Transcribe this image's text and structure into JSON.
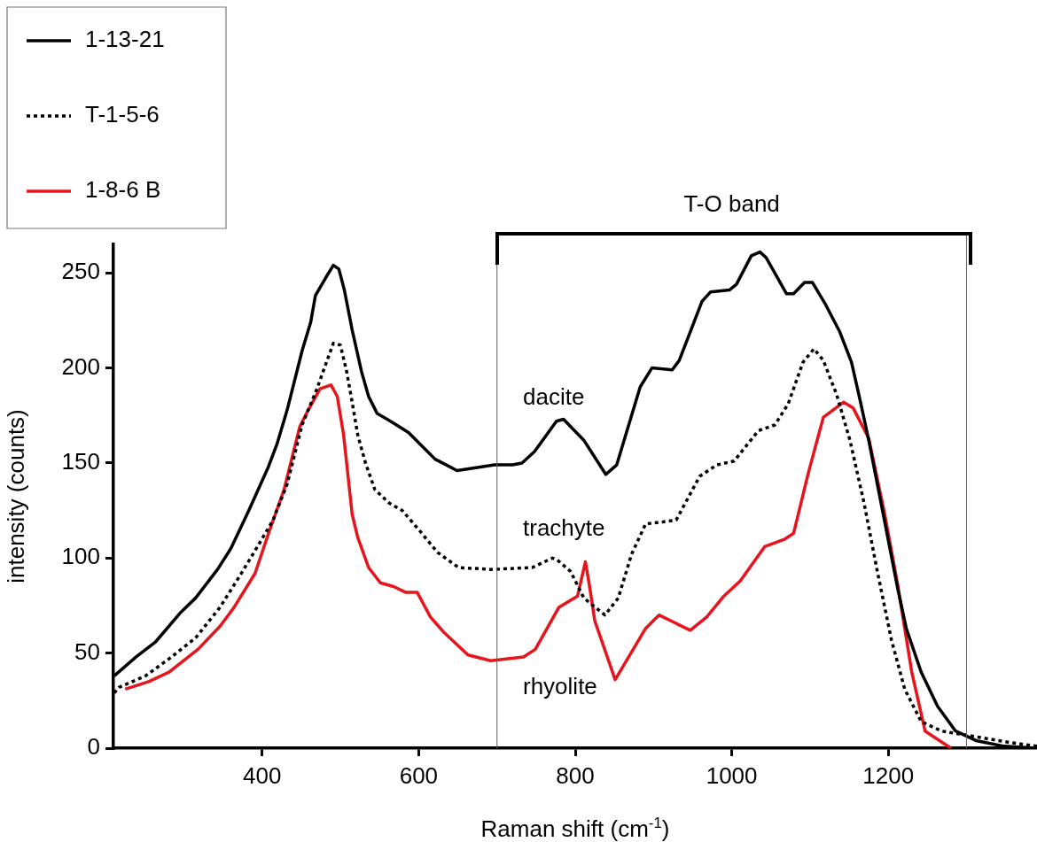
{
  "chart_data": {
    "type": "line",
    "xlabel": "Raman shift (cm$^{-1}$)",
    "ylabel": "intensity (counts)",
    "xlim": [
      210,
      1390
    ],
    "ylim": [
      0,
      265
    ],
    "xticks": [
      400,
      600,
      800,
      1000,
      1200
    ],
    "yticks": [
      0,
      50,
      100,
      150,
      200,
      250
    ],
    "grid": false,
    "legend": "top left",
    "marker": "none",
    "series": [
      {
        "name": "1-13-21",
        "color": "#000000",
        "line_style": "solid",
        "x": [
          211,
          239,
          264,
          295,
          315,
          343,
          360,
          383,
          408,
          419,
          432,
          451,
          462,
          468,
          482,
          491,
          498,
          505,
          515,
          527,
          536,
          547,
          564,
          587,
          621,
          649,
          697,
          720,
          732,
          748,
          776,
          785,
          811,
          839,
          853,
          883,
          898,
          924,
          933,
          962,
          973,
          997,
          1006,
          1025,
          1036,
          1044,
          1070,
          1079,
          1093,
          1103,
          1119,
          1138,
          1153,
          1164,
          1175,
          1195,
          1212,
          1223,
          1242,
          1263,
          1286,
          1312,
          1348,
          1390
        ],
        "values": [
          38,
          48,
          56,
          71,
          79,
          94,
          105,
          125,
          148,
          160,
          178,
          209,
          224,
          238,
          248,
          254,
          252,
          241,
          220,
          198,
          185,
          176,
          172,
          166,
          152,
          146,
          149,
          149,
          150,
          156,
          172,
          173,
          162,
          144,
          149,
          190,
          200,
          199,
          204,
          235,
          240,
          241,
          244,
          259,
          261,
          258,
          239,
          239,
          245,
          245,
          234,
          219,
          203,
          183,
          162,
          120,
          84,
          63,
          40,
          22,
          9,
          4,
          1,
          0
        ]
      },
      {
        "name": "T-1-5-6",
        "color": "#000000",
        "line_style": "dotted",
        "x": [
          211,
          217,
          251,
          281,
          315,
          346,
          372,
          394,
          414,
          432,
          451,
          470,
          483,
          491,
          500,
          508,
          515,
          522,
          532,
          544,
          562,
          579,
          602,
          624,
          651,
          692,
          745,
          771,
          777,
          794,
          811,
          838,
          855,
          872,
          890,
          912,
          929,
          959,
          981,
          1003,
          1034,
          1055,
          1072,
          1091,
          1105,
          1117,
          1134,
          1151,
          1169,
          1186,
          1204,
          1221,
          1242,
          1268,
          1312,
          1355,
          1390
        ],
        "values": [
          29,
          32,
          38,
          47,
          58,
          74,
          91,
          106,
          120,
          139,
          170,
          189,
          204,
          213,
          212,
          198,
          182,
          165,
          150,
          136,
          129,
          125,
          114,
          103,
          95,
          94,
          95,
          100,
          99,
          93,
          79,
          70,
          79,
          102,
          118,
          119,
          120,
          143,
          149,
          151,
          167,
          170,
          181,
          203,
          210,
          204,
          186,
          162,
          129,
          93,
          57,
          31,
          14,
          9,
          6,
          3,
          1
        ]
      },
      {
        "name": "1-8-6 B",
        "color": "#e8141c",
        "line_style": "solid",
        "x": [
          225,
          255,
          281,
          318,
          346,
          364,
          391,
          409,
          428,
          448,
          459,
          474,
          488,
          496,
          504,
          515,
          522,
          536,
          551,
          568,
          583,
          598,
          615,
          632,
          663,
          692,
          734,
          749,
          779,
          803,
          813,
          818,
          825,
          851,
          890,
          907,
          947,
          968,
          990,
          1011,
          1042,
          1068,
          1079,
          1098,
          1117,
          1143,
          1155,
          1175,
          1195,
          1212,
          1230,
          1247,
          1280
        ],
        "values": [
          31,
          35,
          40,
          52,
          64,
          74,
          92,
          114,
          136,
          169,
          178,
          189,
          191,
          185,
          165,
          123,
          111,
          95,
          87,
          85,
          82,
          82,
          69,
          61,
          49,
          46,
          48,
          52,
          74,
          80,
          98,
          86,
          67,
          36,
          63,
          70,
          62,
          69,
          80,
          88,
          106,
          110,
          113,
          145,
          174,
          182,
          179,
          163,
          124,
          86,
          40,
          9,
          0
        ]
      }
    ],
    "ref_lines": [
      {
        "axis": "x",
        "value": 700,
        "color": "#666666"
      },
      {
        "axis": "x",
        "value": 1300,
        "color": "#666666"
      }
    ],
    "annotations": [
      "dacite",
      "trachyte",
      "rhyolite",
      "T-O band"
    ]
  }
}
